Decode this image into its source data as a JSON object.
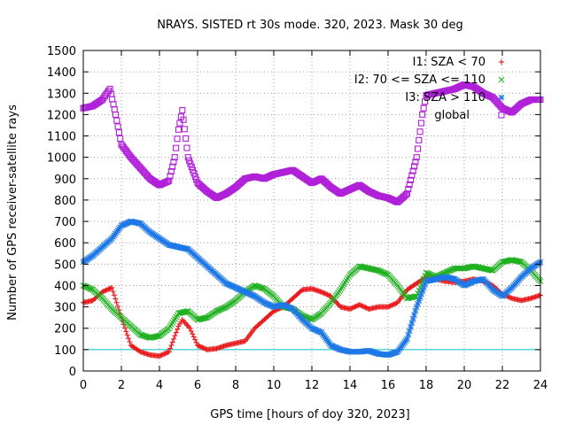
{
  "chart_data": {
    "type": "scatter",
    "title": "NRAYS. SISTED rt 30s mode. 320, 2023. Mask 30 deg",
    "xlabel": "GPS time [hours of doy 320, 2023]",
    "ylabel": "Number of GPS receiver-satellite rays",
    "xlim": [
      0,
      24
    ],
    "ylim": [
      0,
      1500
    ],
    "x_ticks": [
      0,
      2,
      4,
      6,
      8,
      10,
      12,
      14,
      16,
      18,
      20,
      22,
      24
    ],
    "y_ticks": [
      0,
      100,
      200,
      300,
      400,
      500,
      600,
      700,
      800,
      900,
      1000,
      1100,
      1200,
      1300,
      1400,
      1500
    ],
    "grid": true,
    "legend_position": "top-right",
    "reference_line": {
      "y": 100,
      "color": "#00c8c8"
    },
    "series": [
      {
        "name": "I1: SZA < 70",
        "marker": "+",
        "color": "#e8181a",
        "points": [
          [
            0,
            320
          ],
          [
            0.5,
            330
          ],
          [
            1,
            370
          ],
          [
            1.5,
            390
          ],
          [
            2,
            250
          ],
          [
            2.5,
            120
          ],
          [
            3,
            90
          ],
          [
            3.5,
            75
          ],
          [
            4,
            70
          ],
          [
            4.5,
            90
          ],
          [
            5,
            210
          ],
          [
            5.2,
            240
          ],
          [
            5.6,
            200
          ],
          [
            6,
            120
          ],
          [
            6.5,
            100
          ],
          [
            7,
            105
          ],
          [
            7.5,
            120
          ],
          [
            8,
            130
          ],
          [
            8.5,
            140
          ],
          [
            9,
            200
          ],
          [
            9.5,
            240
          ],
          [
            10,
            280
          ],
          [
            10.5,
            300
          ],
          [
            11,
            340
          ],
          [
            11.5,
            380
          ],
          [
            12,
            385
          ],
          [
            12.5,
            370
          ],
          [
            13,
            350
          ],
          [
            13.5,
            300
          ],
          [
            14,
            290
          ],
          [
            14.5,
            310
          ],
          [
            15,
            290
          ],
          [
            15.5,
            300
          ],
          [
            16,
            300
          ],
          [
            16.5,
            320
          ],
          [
            17,
            380
          ],
          [
            17.5,
            410
          ],
          [
            18,
            440
          ],
          [
            18.5,
            430
          ],
          [
            19,
            420
          ],
          [
            19.5,
            415
          ],
          [
            20,
            420
          ],
          [
            20.5,
            430
          ],
          [
            21,
            420
          ],
          [
            21.5,
            400
          ],
          [
            22,
            360
          ],
          [
            22.5,
            340
          ],
          [
            23,
            330
          ],
          [
            23.5,
            340
          ],
          [
            24,
            355
          ]
        ]
      },
      {
        "name": "I2: 70 <= SZA <= 110",
        "marker": "x",
        "color": "#20b020",
        "points": [
          [
            0,
            400
          ],
          [
            0.5,
            380
          ],
          [
            1,
            340
          ],
          [
            1.5,
            290
          ],
          [
            2,
            250
          ],
          [
            2.5,
            210
          ],
          [
            3,
            170
          ],
          [
            3.5,
            155
          ],
          [
            4,
            165
          ],
          [
            4.5,
            200
          ],
          [
            5,
            270
          ],
          [
            5.5,
            280
          ],
          [
            6,
            240
          ],
          [
            6.5,
            250
          ],
          [
            7,
            280
          ],
          [
            7.5,
            300
          ],
          [
            8,
            330
          ],
          [
            8.5,
            370
          ],
          [
            9,
            400
          ],
          [
            9.5,
            385
          ],
          [
            10,
            350
          ],
          [
            10.5,
            300
          ],
          [
            11,
            290
          ],
          [
            11.5,
            260
          ],
          [
            12,
            240
          ],
          [
            12.5,
            270
          ],
          [
            13,
            320
          ],
          [
            13.5,
            380
          ],
          [
            14,
            450
          ],
          [
            14.5,
            490
          ],
          [
            15,
            480
          ],
          [
            15.5,
            470
          ],
          [
            16,
            450
          ],
          [
            16.5,
            400
          ],
          [
            17,
            340
          ],
          [
            17.5,
            350
          ],
          [
            18,
            460
          ],
          [
            18.5,
            440
          ],
          [
            19,
            460
          ],
          [
            19.5,
            480
          ],
          [
            20,
            480
          ],
          [
            20.5,
            490
          ],
          [
            21,
            480
          ],
          [
            21.5,
            470
          ],
          [
            22,
            510
          ],
          [
            22.5,
            520
          ],
          [
            23,
            510
          ],
          [
            23.5,
            470
          ],
          [
            24,
            420
          ]
        ]
      },
      {
        "name": "I3: SZA > 110",
        "marker": "*",
        "color": "#1e78e6",
        "points": [
          [
            0,
            510
          ],
          [
            0.5,
            540
          ],
          [
            1,
            580
          ],
          [
            1.5,
            620
          ],
          [
            2,
            680
          ],
          [
            2.5,
            700
          ],
          [
            3,
            690
          ],
          [
            3.5,
            650
          ],
          [
            4,
            620
          ],
          [
            4.5,
            590
          ],
          [
            5,
            580
          ],
          [
            5.5,
            570
          ],
          [
            6,
            530
          ],
          [
            6.5,
            490
          ],
          [
            7,
            450
          ],
          [
            7.5,
            410
          ],
          [
            8,
            390
          ],
          [
            8.5,
            370
          ],
          [
            9,
            350
          ],
          [
            9.5,
            320
          ],
          [
            10,
            300
          ],
          [
            10.5,
            310
          ],
          [
            11,
            290
          ],
          [
            11.5,
            240
          ],
          [
            12,
            200
          ],
          [
            12.5,
            180
          ],
          [
            13,
            120
          ],
          [
            13.5,
            100
          ],
          [
            14,
            90
          ],
          [
            14.5,
            90
          ],
          [
            15,
            95
          ],
          [
            15.5,
            80
          ],
          [
            16,
            75
          ],
          [
            16.5,
            90
          ],
          [
            17,
            150
          ],
          [
            17.5,
            300
          ],
          [
            18,
            420
          ],
          [
            18.5,
            430
          ],
          [
            19,
            440
          ],
          [
            19.5,
            430
          ],
          [
            20,
            400
          ],
          [
            20.5,
            420
          ],
          [
            21,
            430
          ],
          [
            21.5,
            380
          ],
          [
            22,
            350
          ],
          [
            22.5,
            390
          ],
          [
            23,
            440
          ],
          [
            23.5,
            480
          ],
          [
            24,
            510
          ]
        ]
      },
      {
        "name": "global",
        "marker": "square",
        "color": "#b020d8",
        "points": [
          [
            0,
            1230
          ],
          [
            0.5,
            1240
          ],
          [
            1,
            1270
          ],
          [
            1.4,
            1320
          ],
          [
            1.7,
            1200
          ],
          [
            2,
            1060
          ],
          [
            2.5,
            1000
          ],
          [
            3,
            950
          ],
          [
            3.5,
            900
          ],
          [
            4,
            870
          ],
          [
            4.5,
            890
          ],
          [
            4.8,
            1000
          ],
          [
            5,
            1130
          ],
          [
            5.2,
            1220
          ],
          [
            5.5,
            1000
          ],
          [
            6,
            880
          ],
          [
            6.5,
            840
          ],
          [
            7,
            810
          ],
          [
            7.5,
            830
          ],
          [
            8,
            860
          ],
          [
            8.5,
            900
          ],
          [
            9,
            910
          ],
          [
            9.5,
            900
          ],
          [
            10,
            920
          ],
          [
            10.5,
            930
          ],
          [
            11,
            940
          ],
          [
            11.5,
            910
          ],
          [
            12,
            880
          ],
          [
            12.5,
            900
          ],
          [
            13,
            860
          ],
          [
            13.5,
            830
          ],
          [
            14,
            850
          ],
          [
            14.5,
            870
          ],
          [
            15,
            840
          ],
          [
            15.5,
            820
          ],
          [
            16,
            810
          ],
          [
            16.5,
            790
          ],
          [
            17,
            830
          ],
          [
            17.5,
            1000
          ],
          [
            17.8,
            1200
          ],
          [
            18,
            1290
          ],
          [
            18.5,
            1300
          ],
          [
            19,
            1310
          ],
          [
            19.5,
            1320
          ],
          [
            20,
            1340
          ],
          [
            20.5,
            1330
          ],
          [
            21,
            1300
          ],
          [
            21.5,
            1280
          ],
          [
            22,
            1230
          ],
          [
            22.5,
            1210
          ],
          [
            23,
            1250
          ],
          [
            23.5,
            1270
          ],
          [
            24,
            1270
          ]
        ]
      }
    ]
  }
}
